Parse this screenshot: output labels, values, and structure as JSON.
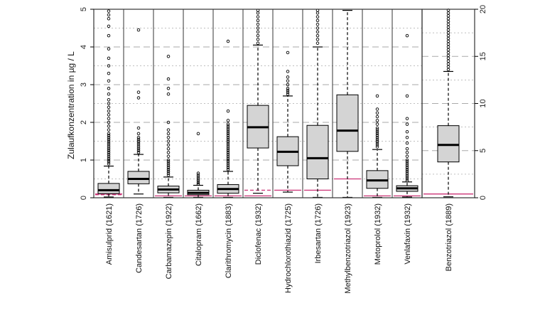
{
  "chart_data": {
    "type": "boxplot",
    "title": "",
    "ylabel": "Zulaufkonzentration in  µg / L",
    "colors": {
      "box_fill": "#d4d4d4",
      "limit_line": "#cc3377",
      "grid": "#aaaaaa",
      "frame": "#333333"
    },
    "left_axis": {
      "ylim": [
        0,
        5
      ],
      "ticks": [
        "0",
        "1",
        "2",
        "3",
        "4",
        "5"
      ]
    },
    "right_axis": {
      "ylim": [
        0,
        20
      ],
      "ticks": [
        "0",
        "5",
        "10",
        "15",
        "20"
      ]
    },
    "categories": [
      {
        "label": "Amisulprid (1621)",
        "axis": "left",
        "q1": 0.11,
        "median": 0.2,
        "q3": 0.38,
        "whisker_low": 0.02,
        "whisker_high": 0.84,
        "limit": [
          0.08,
          0.1
        ],
        "outliers": [
          0.9,
          0.95,
          1.0,
          1.05,
          1.1,
          1.15,
          1.2,
          1.25,
          1.3,
          1.35,
          1.4,
          1.45,
          1.5,
          1.55,
          1.6,
          1.65,
          1.7,
          1.8,
          1.9,
          2.0,
          2.1,
          2.2,
          2.3,
          2.4,
          2.5,
          2.6,
          2.75,
          2.9,
          3.1,
          3.3,
          3.5,
          3.7,
          3.95,
          4.3,
          4.55,
          4.75,
          4.85,
          4.95
        ]
      },
      {
        "label": "Candesartan (1726)",
        "axis": "left",
        "q1": 0.37,
        "median": 0.5,
        "q3": 0.7,
        "whisker_low": 0.1,
        "whisker_high": 1.15,
        "limit": [],
        "outliers": [
          1.2,
          1.25,
          1.3,
          1.35,
          1.4,
          1.45,
          1.5,
          1.55,
          1.6,
          1.7,
          1.85,
          2.65,
          2.8,
          4.45
        ]
      },
      {
        "label": "Carbamazepin (1922)",
        "axis": "left",
        "q1": 0.13,
        "median": 0.22,
        "q3": 0.31,
        "whisker_low": 0.01,
        "whisker_high": 0.55,
        "limit": [
          0.05
        ],
        "outliers": [
          0.6,
          0.65,
          0.7,
          0.75,
          0.8,
          0.85,
          0.9,
          0.95,
          1.0,
          1.1,
          1.2,
          1.3,
          1.4,
          1.5,
          1.6,
          1.7,
          1.8,
          2.0,
          2.75,
          2.9,
          3.15,
          3.75
        ]
      },
      {
        "label": "Citalopram (1662)",
        "axis": "left",
        "q1": 0.08,
        "median": 0.13,
        "q3": 0.2,
        "whisker_low": 0.01,
        "whisker_high": 0.33,
        "limit": [
          0.05
        ],
        "outliers": [
          0.36,
          0.4,
          0.45,
          0.5,
          0.55,
          0.6,
          0.65,
          1.7
        ]
      },
      {
        "label": "Clarithromycin (1883)",
        "axis": "left",
        "q1": 0.12,
        "median": 0.23,
        "q3": 0.35,
        "whisker_low": 0.01,
        "whisker_high": 0.7,
        "limit": [
          0.05
        ],
        "outliers": [
          0.75,
          0.8,
          0.85,
          0.9,
          0.95,
          1.0,
          1.05,
          1.1,
          1.15,
          1.2,
          1.25,
          1.3,
          1.35,
          1.4,
          1.45,
          1.5,
          1.55,
          1.6,
          1.65,
          1.7,
          1.75,
          1.8,
          1.85,
          1.9,
          1.95,
          2.05,
          2.3,
          4.15
        ]
      },
      {
        "label": "Diclofenac (1932)",
        "axis": "left",
        "q1": 1.32,
        "median": 1.87,
        "q3": 2.45,
        "whisker_low": 0.12,
        "whisker_high": 4.05,
        "limit": [
          0.2,
          0.05
        ],
        "outliers": [
          4.1,
          4.2,
          4.3,
          4.4,
          4.5,
          4.6,
          4.7,
          4.8,
          4.9,
          4.97
        ]
      },
      {
        "label": "Hydrochlorothiazid (1725)",
        "axis": "left",
        "q1": 0.85,
        "median": 1.22,
        "q3": 1.62,
        "whisker_low": 0.15,
        "whisker_high": 2.7,
        "limit": [
          0.2
        ],
        "outliers": [
          2.75,
          2.8,
          2.85,
          2.9,
          3.0,
          3.1,
          3.2,
          3.35,
          3.85
        ]
      },
      {
        "label": "Irbesartan (1726)",
        "axis": "left",
        "q1": 0.5,
        "median": 1.05,
        "q3": 1.92,
        "whisker_low": 0.01,
        "whisker_high": 4.0,
        "limit": [
          0.2
        ],
        "outliers": [
          4.1,
          4.2,
          4.3,
          4.4,
          4.5,
          4.6,
          4.7,
          4.8,
          4.9,
          4.97
        ]
      },
      {
        "label": "Methylbenzotriazol (1923)",
        "axis": "left",
        "q1": 1.23,
        "median": 1.78,
        "q3": 2.73,
        "whisker_low": 0.01,
        "whisker_high": 4.97,
        "limit": [
          0.5
        ],
        "outliers": []
      },
      {
        "label": "Metoprolol (1932)",
        "axis": "left",
        "q1": 0.25,
        "median": 0.46,
        "q3": 0.72,
        "whisker_low": 0.01,
        "whisker_high": 1.28,
        "limit": [
          0.05
        ],
        "outliers": [
          1.35,
          1.4,
          1.45,
          1.5,
          1.55,
          1.6,
          1.65,
          1.7,
          1.75,
          1.8,
          1.85,
          1.95,
          2.05,
          2.15,
          2.25,
          2.35,
          2.7
        ]
      },
      {
        "label": "Venlafaxin (1932)",
        "axis": "left",
        "q1": 0.17,
        "median": 0.25,
        "q3": 0.32,
        "whisker_low": 0.02,
        "whisker_high": 0.42,
        "limit": [
          0.05
        ],
        "outliers": [
          0.45,
          0.5,
          0.55,
          0.6,
          0.65,
          0.7,
          0.75,
          0.8,
          0.85,
          0.9,
          0.95,
          1.0,
          1.1,
          1.2,
          1.3,
          1.45,
          1.6,
          1.75,
          1.95,
          2.1,
          2.7,
          4.3
        ]
      },
      {
        "label": "Benzotriazol (1889)",
        "axis": "right",
        "q1": 3.8,
        "median": 5.6,
        "q3": 7.65,
        "whisker_low": 0.1,
        "whisker_high": 13.4,
        "limit": [
          0.4
        ],
        "outliers": [
          13.6,
          13.9,
          14.2,
          14.5,
          14.8,
          15.1,
          15.4,
          15.7,
          16.0,
          16.3,
          16.6,
          16.9,
          17.2,
          17.5,
          17.8,
          18.1,
          18.4,
          18.7,
          19.0,
          19.3,
          19.6,
          19.9
        ]
      }
    ]
  }
}
